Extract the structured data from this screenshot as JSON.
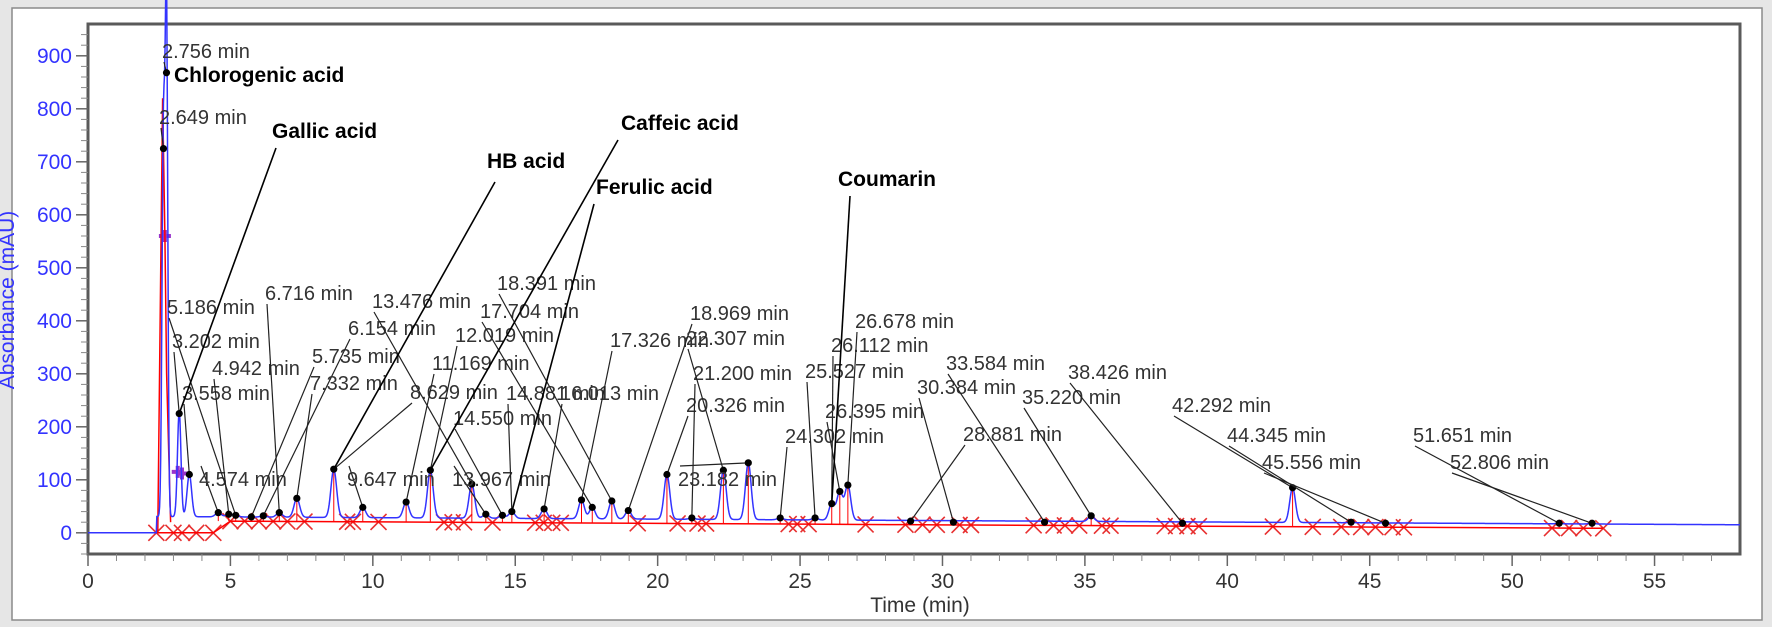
{
  "chart_data": {
    "type": "line",
    "title": "",
    "xlabel": "Time (min)",
    "ylabel": "Absorbance (mAU)",
    "xlim": [
      0,
      58
    ],
    "ylim": [
      -40,
      960
    ],
    "xticks": [
      "0",
      "5",
      "10",
      "15",
      "20",
      "25",
      "30",
      "35",
      "40",
      "45",
      "50",
      "55"
    ],
    "yticks": [
      "0",
      "100",
      "200",
      "300",
      "400",
      "500",
      "600",
      "700",
      "800",
      "900"
    ],
    "grid": false,
    "colors": {
      "signal": "#3333ff",
      "overlay": "#ff0000",
      "marker": "#e83030",
      "point": "#000000",
      "purple": "#9933cc",
      "axis_text_y": "#3333ff"
    },
    "peaks": [
      {
        "label": "2.649 min",
        "x": 2.649,
        "y": 725
      },
      {
        "label": "2.756 min",
        "x": 2.756,
        "y": 868
      },
      {
        "label": "3.202 min",
        "x": 3.202,
        "y": 225
      },
      {
        "label": "3.558 min",
        "x": 3.558,
        "y": 110
      },
      {
        "label": "4.574 min",
        "x": 4.574,
        "y": 38
      },
      {
        "label": "4.942 min",
        "x": 4.942,
        "y": 35
      },
      {
        "label": "5.186 min",
        "x": 5.186,
        "y": 33
      },
      {
        "label": "5.735 min",
        "x": 5.735,
        "y": 30
      },
      {
        "label": "6.154 min",
        "x": 6.154,
        "y": 32
      },
      {
        "label": "6.716 min",
        "x": 6.716,
        "y": 38
      },
      {
        "label": "7.332 min",
        "x": 7.332,
        "y": 65
      },
      {
        "label": "8.629 min",
        "x": 8.629,
        "y": 120
      },
      {
        "label": "9.647 min",
        "x": 9.647,
        "y": 48
      },
      {
        "label": "11.169 min",
        "x": 11.169,
        "y": 58
      },
      {
        "label": "12.019 min",
        "x": 12.019,
        "y": 118
      },
      {
        "label": "13.476 min",
        "x": 13.476,
        "y": 92
      },
      {
        "label": "13.967 min",
        "x": 13.967,
        "y": 35
      },
      {
        "label": "14.550 min",
        "x": 14.55,
        "y": 33
      },
      {
        "label": "14.881 min",
        "x": 14.881,
        "y": 40
      },
      {
        "label": "16.013 min",
        "x": 16.013,
        "y": 45
      },
      {
        "label": "17.326 min",
        "x": 17.326,
        "y": 62
      },
      {
        "label": "17.704 min",
        "x": 17.704,
        "y": 48
      },
      {
        "label": "18.391 min",
        "x": 18.391,
        "y": 60
      },
      {
        "label": "18.969 min",
        "x": 18.969,
        "y": 42
      },
      {
        "label": "20.326 min",
        "x": 20.326,
        "y": 110
      },
      {
        "label": "21.200 min",
        "x": 21.2,
        "y": 28
      },
      {
        "label": "22.307 min",
        "x": 22.307,
        "y": 118
      },
      {
        "label": "23.182 min",
        "x": 23.182,
        "y": 132
      },
      {
        "label": "24.302 min",
        "x": 24.302,
        "y": 28
      },
      {
        "label": "25.527 min",
        "x": 25.527,
        "y": 28
      },
      {
        "label": "26.112 min",
        "x": 26.112,
        "y": 55
      },
      {
        "label": "26.395 min",
        "x": 26.395,
        "y": 78
      },
      {
        "label": "26.678 min",
        "x": 26.678,
        "y": 90
      },
      {
        "label": "28.881 min",
        "x": 28.881,
        "y": 22
      },
      {
        "label": "30.384 min",
        "x": 30.384,
        "y": 20
      },
      {
        "label": "33.584 min",
        "x": 33.584,
        "y": 20
      },
      {
        "label": "35.220 min",
        "x": 35.22,
        "y": 32
      },
      {
        "label": "38.426 min",
        "x": 38.426,
        "y": 18
      },
      {
        "label": "42.292 min",
        "x": 42.292,
        "y": 85
      },
      {
        "label": "44.345 min",
        "x": 44.345,
        "y": 20
      },
      {
        "label": "45.556 min",
        "x": 45.556,
        "y": 18
      },
      {
        "label": "51.651 min",
        "x": 51.651,
        "y": 18
      },
      {
        "label": "52.806 min",
        "x": 52.806,
        "y": 18
      }
    ],
    "compounds": [
      {
        "name": "Chlorogenic acid",
        "peak": "2.756 min"
      },
      {
        "name": "Gallic acid",
        "peak": "3.202 min"
      },
      {
        "name": "HB acid",
        "peak": "8.629 min"
      },
      {
        "name": "Caffeic acid",
        "peak": "12.019 min"
      },
      {
        "name": "Ferulic acid",
        "peak": "14.881 min"
      },
      {
        "name": "Coumarin",
        "peak": "26.112 min"
      }
    ],
    "baseline_markers_x": [
      2.4,
      3.0,
      3.3,
      3.8,
      4.4,
      5.0,
      5.5,
      6.0,
      6.5,
      7.0,
      7.6,
      9.1,
      9.3,
      10.2,
      12.5,
      12.8,
      13.2,
      14.2,
      15.7,
      16.0,
      16.3,
      16.6,
      19.3,
      20.7,
      21.4,
      21.7,
      24.6,
      24.9,
      25.3,
      27.3,
      28.7,
      29.3,
      29.8,
      30.6,
      31.0,
      33.2,
      33.9,
      34.3,
      34.8,
      35.6,
      35.9,
      37.8,
      38.2,
      38.6,
      39.0,
      41.6,
      43.0,
      44.0,
      44.7,
      45.2,
      45.8,
      46.2,
      51.4,
      52.0,
      52.5,
      53.2
    ]
  }
}
